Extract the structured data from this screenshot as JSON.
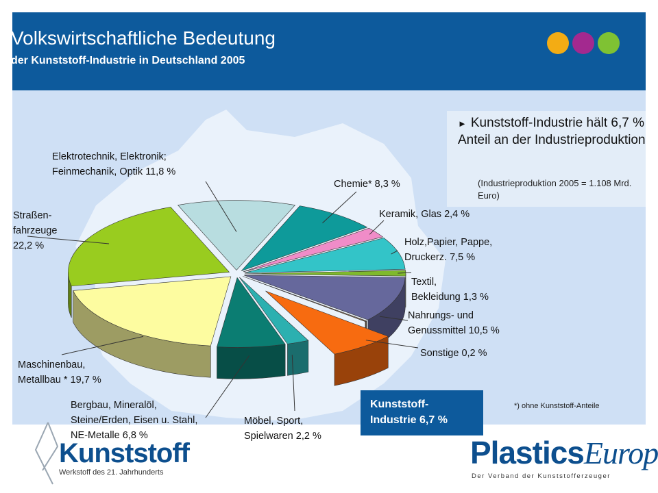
{
  "header": {
    "title": "Volkswirtschaftliche Bedeutung",
    "subtitle": "der Kunststoff-Industrie in Deutschland 2005",
    "dots": [
      "#f3ac14",
      "#a3298f",
      "#7fc233"
    ]
  },
  "info": {
    "arrow": "►",
    "main": "Kunststoff-Industrie hält 6,7 % Anteil an der Industrieproduktion",
    "sub": "(Industrieproduktion 2005 = 1.108 Mrd. Euro)"
  },
  "footnote": "*) ohne Kunststoff-Anteile",
  "logos": {
    "kunststoff": "Kunststoff",
    "kunststoff_tag": "Werkstoff des 21. Jahrhunderts",
    "plastics_a": "Plastics",
    "plastics_b": "Europe",
    "plastics_tag": "Der Verband der Kunststofferzeuger"
  },
  "chart_data": {
    "type": "pie",
    "title": "",
    "unit": "%",
    "slices": [
      {
        "name": "Elektrotechnik, Elektronik, Feinmechanik, Optik",
        "value": 11.8,
        "label": "Elektrotechnik, Elektronik;\nFeinmechanik, Optik 11,8 %",
        "color": "#b8dde0"
      },
      {
        "name": "Chemie*",
        "value": 8.3,
        "label": "Chemie* 8,3 %",
        "color": "#0e9a9a"
      },
      {
        "name": "Keramik, Glas",
        "value": 2.4,
        "label": "Keramik, Glas 2,4 %",
        "color": "#f08cc8"
      },
      {
        "name": "Holz, Papier, Pappe, Druckerz.",
        "value": 7.5,
        "label": "Holz,Papier, Pappe,\nDruckerz. 7,5 %",
        "color": "#33c4c8"
      },
      {
        "name": "Textil, Bekleidung",
        "value": 1.3,
        "label": "Textil,\nBekleidung 1,3 %",
        "color": "#7fb92c"
      },
      {
        "name": "Nahrungs- und Genussmittel",
        "value": 10.5,
        "label": "Nahrungs- und\nGenussmittel 10,5 %",
        "color": "#66689c"
      },
      {
        "name": "Sonstige",
        "value": 0.2,
        "label": "Sonstige 0,2 %",
        "color": "#8a6e52"
      },
      {
        "name": "Kunststoff-Industrie",
        "value": 6.7,
        "label": "Kunststoff-\nIndustrie 6,7 %",
        "color": "#f76b10"
      },
      {
        "name": "Möbel, Sport, Spielwaren",
        "value": 2.2,
        "label": "Möbel, Sport,\nSpielwaren 2,2 %",
        "color": "#2cb0b0"
      },
      {
        "name": "Bergbau, Mineralöl, Steine/Erden, Eisen u. Stahl, NE-Metalle",
        "value": 6.8,
        "label": "Bergbau, Mineralöl,\nSteine/Erden, Eisen u. Stahl,\nNE-Metalle 6,8 %",
        "color": "#0b7d72"
      },
      {
        "name": "Maschinenbau, Metallbau *",
        "value": 19.7,
        "label": "Maschinenbau,\nMetallbau * 19,7 %",
        "color": "#fdfca0"
      },
      {
        "name": "Straßenfahrzeuge",
        "value": 22.2,
        "label": "Straßen-\nfahrzeuge\n22,2 %",
        "color": "#99cc1f"
      }
    ]
  }
}
